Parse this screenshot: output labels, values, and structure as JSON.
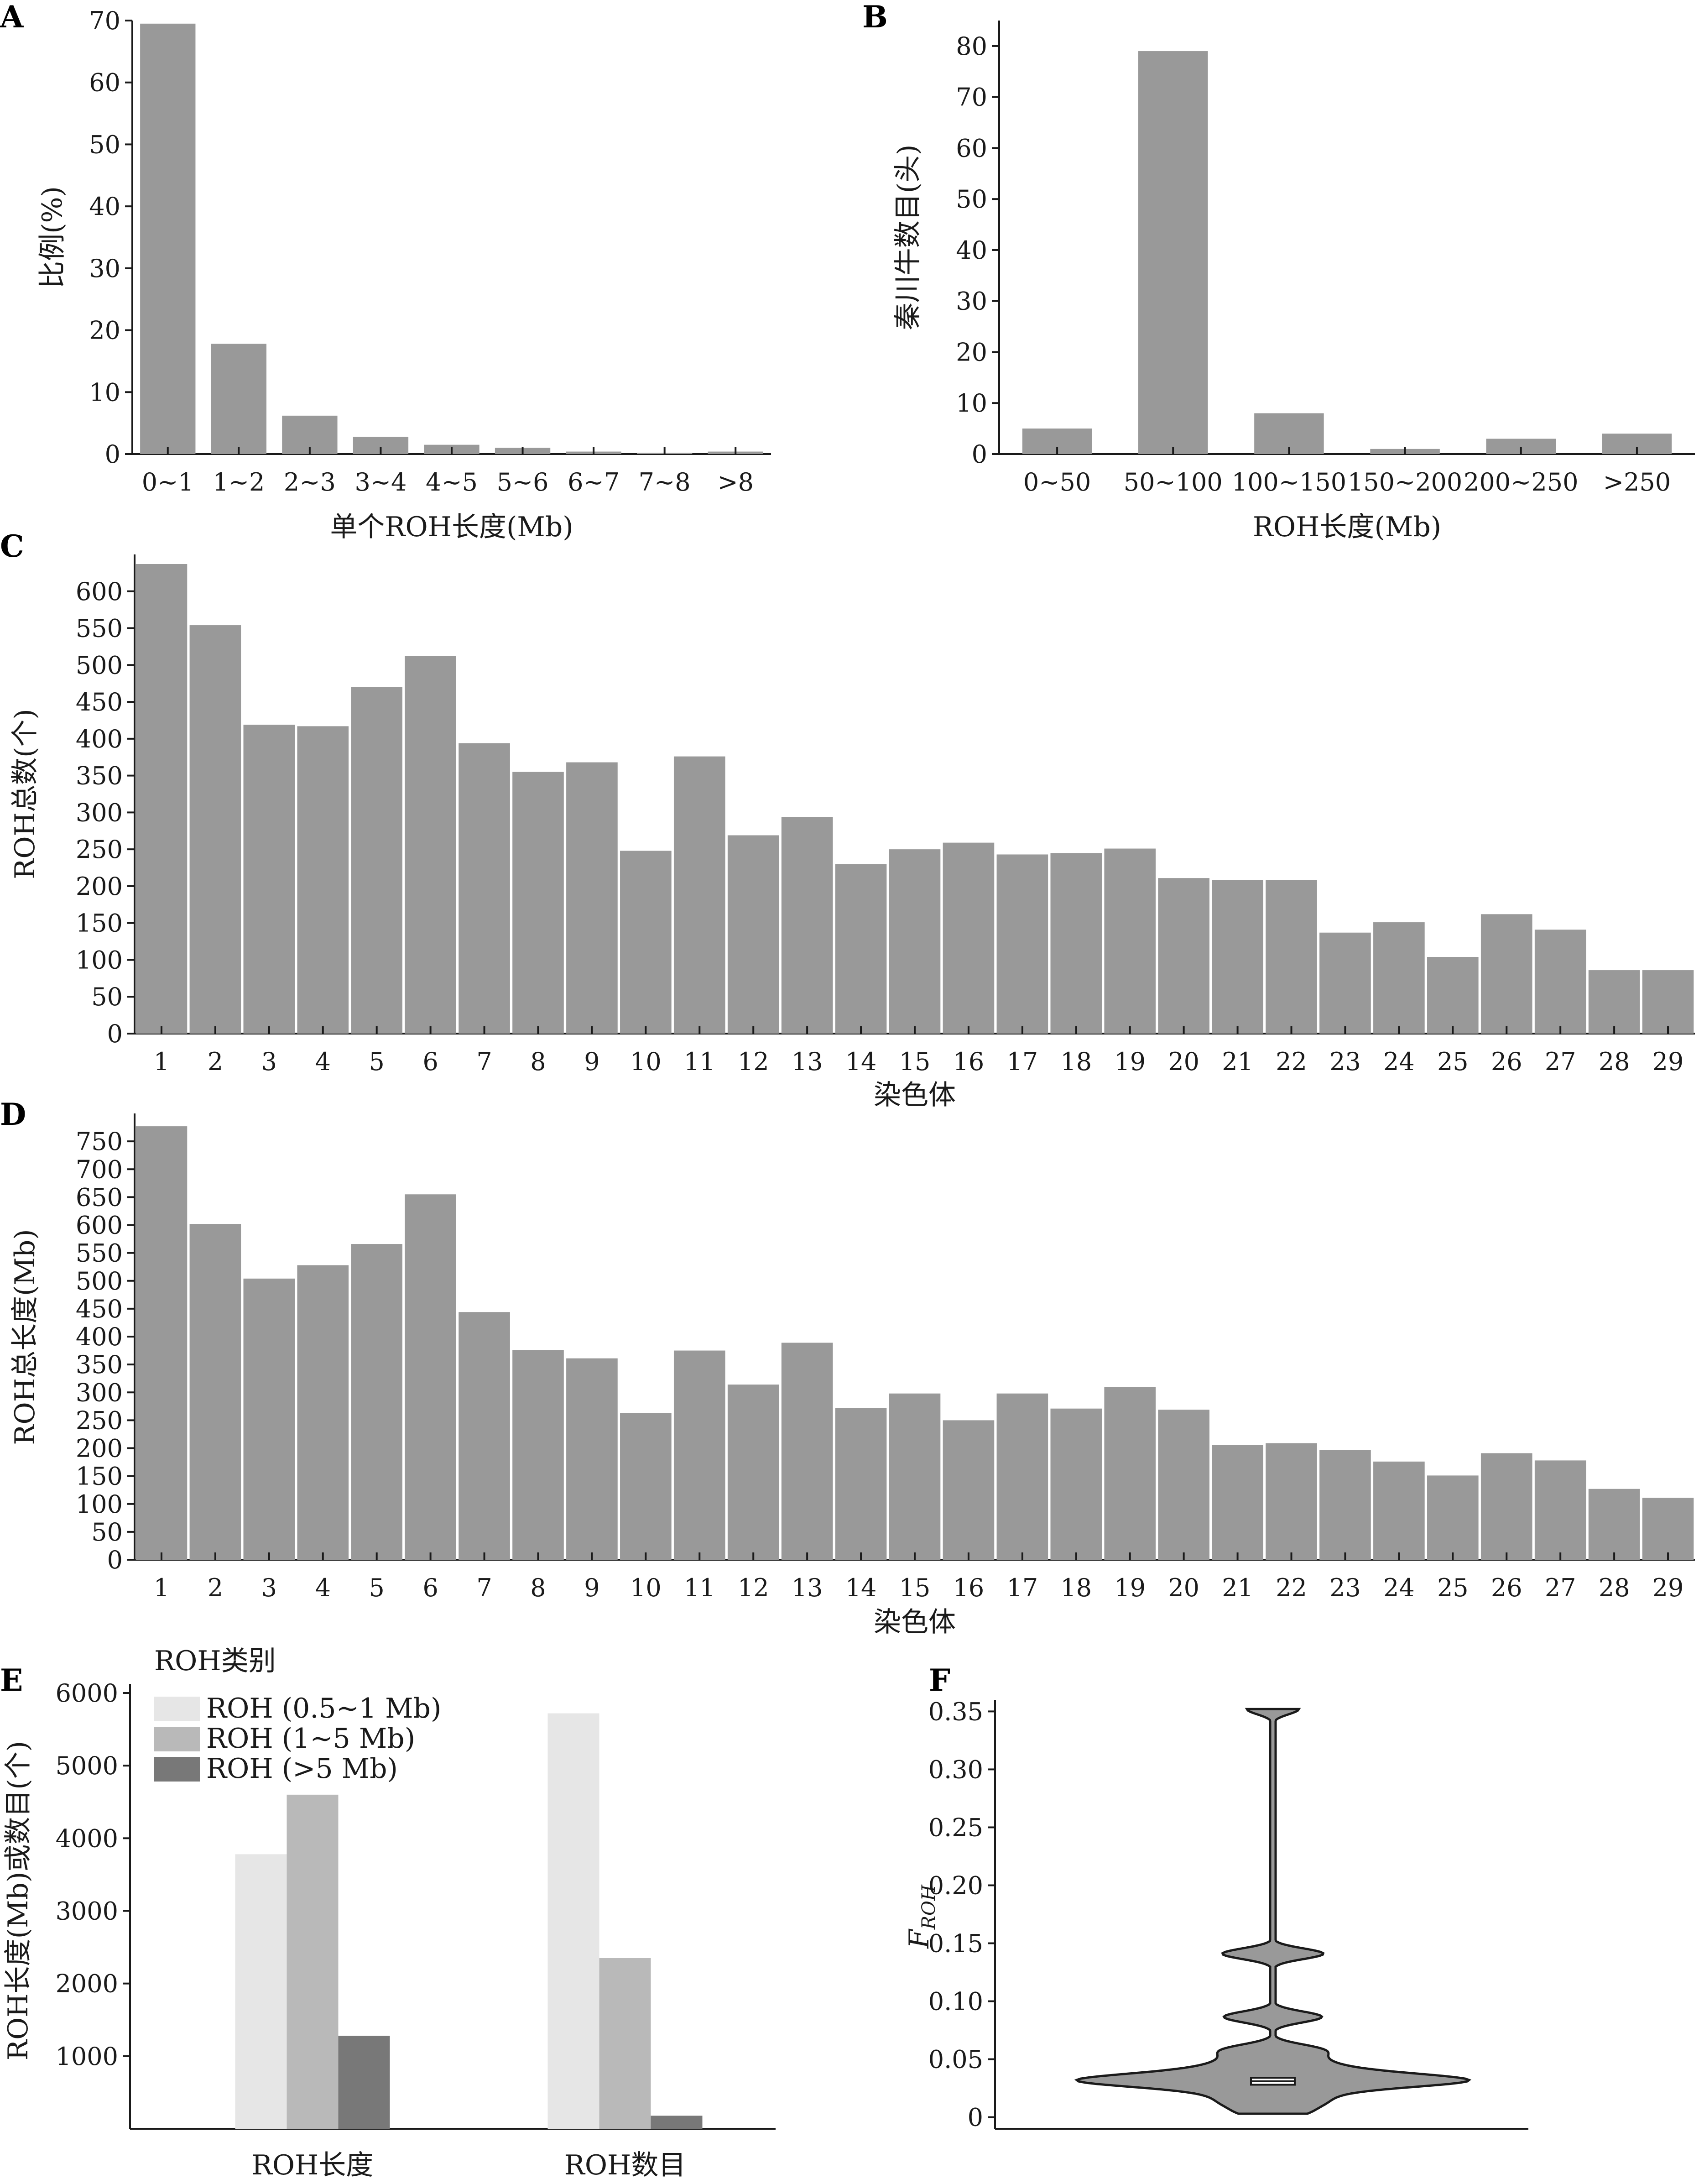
{
  "chart_data": [
    {
      "panel": "A",
      "type": "bar",
      "categories": [
        "0~1",
        "1~2",
        "2~3",
        "3~4",
        "4~5",
        "5~6",
        "6~7",
        "7~8",
        ">8"
      ],
      "values": [
        69.5,
        17.8,
        6.2,
        2.8,
        1.5,
        1.0,
        0.4,
        0.2,
        0.4
      ],
      "title": "",
      "xlabel": "单个ROH长度(Mb)",
      "ylabel": "比例(%)",
      "ylim": [
        0,
        70
      ],
      "yticks": [
        "0",
        "10",
        "20",
        "30",
        "40",
        "50",
        "60",
        "70"
      ],
      "bar_color": "#999999"
    },
    {
      "panel": "B",
      "type": "bar",
      "categories": [
        "0~50",
        "50~100",
        "100~150",
        "150~200",
        "200~250",
        ">250"
      ],
      "values": [
        5,
        79,
        8,
        1,
        3,
        4
      ],
      "title": "",
      "xlabel": "ROH长度(Mb)",
      "ylabel": "秦川牛数目(头)",
      "ylim": [
        0,
        85
      ],
      "yticks": [
        "0",
        "10",
        "20",
        "30",
        "40",
        "50",
        "60",
        "70",
        "80"
      ],
      "bar_color": "#999999"
    },
    {
      "panel": "C",
      "type": "bar",
      "categories": [
        "1",
        "2",
        "3",
        "4",
        "5",
        "6",
        "7",
        "8",
        "9",
        "10",
        "11",
        "12",
        "13",
        "14",
        "15",
        "16",
        "17",
        "18",
        "19",
        "20",
        "21",
        "22",
        "23",
        "24",
        "25",
        "26",
        "27",
        "28",
        "29"
      ],
      "values": [
        637,
        554,
        419,
        417,
        470,
        512,
        394,
        355,
        368,
        248,
        376,
        269,
        294,
        230,
        250,
        259,
        243,
        245,
        251,
        211,
        208,
        208,
        137,
        151,
        104,
        162,
        141,
        86,
        86
      ],
      "title": "",
      "xlabel": "染色体",
      "ylabel": "ROH总数(个)",
      "ylim": [
        0,
        650
      ],
      "yticks": [
        "0",
        "50",
        "100",
        "150",
        "200",
        "250",
        "300",
        "350",
        "400",
        "450",
        "500",
        "550",
        "600"
      ],
      "bar_color": "#999999"
    },
    {
      "panel": "D",
      "type": "bar",
      "categories": [
        "1",
        "2",
        "3",
        "4",
        "5",
        "6",
        "7",
        "8",
        "9",
        "10",
        "11",
        "12",
        "13",
        "14",
        "15",
        "16",
        "17",
        "18",
        "19",
        "20",
        "21",
        "22",
        "23",
        "24",
        "25",
        "26",
        "27",
        "28",
        "29"
      ],
      "values": [
        777,
        602,
        504,
        528,
        566,
        655,
        444,
        376,
        361,
        263,
        375,
        314,
        389,
        272,
        298,
        250,
        298,
        271,
        310,
        269,
        206,
        209,
        197,
        176,
        151,
        191,
        178,
        127,
        111
      ],
      "title": "",
      "xlabel": "染色体",
      "ylabel": "ROH总长度(Mb)",
      "ylim": [
        0,
        800
      ],
      "yticks": [
        "0",
        "50",
        "100",
        "150",
        "200",
        "250",
        "300",
        "350",
        "400",
        "450",
        "500",
        "550",
        "600",
        "650",
        "700",
        "750"
      ],
      "bar_color": "#999999"
    },
    {
      "panel": "E",
      "type": "bar",
      "categories": [
        "ROH长度",
        "ROH数目"
      ],
      "series": [
        {
          "name": "ROH (0.5~1 Mb)",
          "values": [
            3780,
            5720
          ],
          "color": "#e6e6e6"
        },
        {
          "name": "ROH (1~5 Mb)",
          "values": [
            4600,
            2350
          ],
          "color": "#b9b9b9"
        },
        {
          "name": "ROH (>5 Mb)",
          "values": [
            1280,
            180
          ],
          "color": "#787878"
        }
      ],
      "title": "",
      "legend_title": "ROH类别",
      "legend_position": "top-left",
      "xlabel": "",
      "ylabel": "ROH长度(Mb)或数目(个)",
      "ylim": [
        0,
        6000
      ],
      "yticks": [
        "1000",
        "2000",
        "3000",
        "4000",
        "5000",
        "6000"
      ]
    },
    {
      "panel": "F",
      "type": "violin",
      "categories": [
        ""
      ],
      "values": [
        0.003,
        0.01,
        0.015,
        0.02,
        0.024,
        0.027,
        0.029,
        0.03,
        0.031,
        0.032,
        0.033,
        0.034,
        0.036,
        0.038,
        0.041,
        0.045,
        0.05,
        0.056,
        0.06,
        0.085,
        0.088,
        0.14,
        0.142,
        0.352
      ],
      "median": 0.031,
      "q1": 0.028,
      "q3": 0.034,
      "title": "",
      "xlabel": "",
      "ylabel_main": "F",
      "ylabel_sub": "ROH",
      "ylim": [
        -0.01,
        0.36
      ],
      "yticks": [
        "0",
        "0.05",
        "0.10",
        "0.15",
        "0.20",
        "0.25",
        "0.30",
        "0.35"
      ],
      "fill_color": "#999999"
    }
  ]
}
